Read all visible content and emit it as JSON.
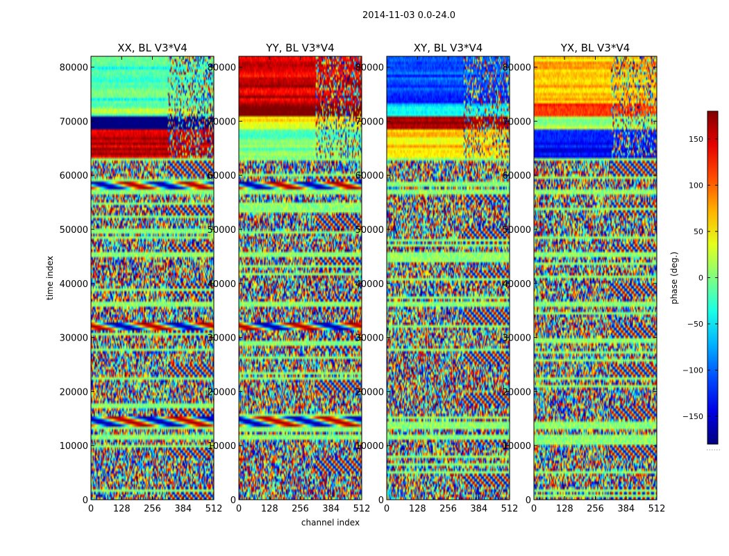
{
  "figure": {
    "suptitle": "2014-11-03 0.0-24.0"
  },
  "chart_data": {
    "type": "heatmap",
    "title": "2014-11-03 0.0-24.0",
    "xlabel": "channel index",
    "ylabel": "time index",
    "xlim": [
      0,
      512
    ],
    "ylim": [
      0,
      82000
    ],
    "xticks": [
      0,
      128,
      256,
      384,
      512
    ],
    "yticks": [
      0,
      10000,
      20000,
      30000,
      40000,
      50000,
      60000,
      70000,
      80000
    ],
    "xtick_labels": [
      "0",
      "128",
      "256",
      "384",
      "512"
    ],
    "ytick_labels": [
      "0",
      "10000",
      "20000",
      "30000",
      "40000",
      "50000",
      "60000",
      "70000",
      "80000"
    ],
    "colormap": "jet",
    "colorbar": {
      "label": "phase (deg.)",
      "range": [
        -180,
        180
      ],
      "ticks": [
        150,
        100,
        50,
        0,
        -50,
        -100,
        -150
      ],
      "tick_labels": [
        "150",
        "100",
        "50",
        "0",
        "−50",
        "−100",
        "−150"
      ],
      "footer": "......"
    },
    "panels": [
      {
        "title": "XX, BL V3*V4",
        "polarization": "XX",
        "baseline": "V3*V4",
        "seed": 11
      },
      {
        "title": "YY, BL V3*V4",
        "polarization": "YY",
        "baseline": "V3*V4",
        "seed": 23
      },
      {
        "title": "XY, BL V3*V4",
        "polarization": "XY",
        "baseline": "V3*V4",
        "seed": 37
      },
      {
        "title": "YX, BL V3*V4",
        "polarization": "YX",
        "baseline": "V3*V4",
        "seed": 51
      }
    ],
    "features": {
      "noise_region_time": [
        0,
        63000
      ],
      "coherent_region_time": [
        63000,
        82000
      ],
      "bright_bands_time": [
        14500,
        32000,
        58000
      ],
      "quiet_bands_time": [
        11500,
        13500,
        36000,
        45500,
        57000,
        63200,
        73500
      ],
      "fringe_region_channels": [
        320,
        512
      ],
      "mean_phase_deg": [
        [
          [
            63000,
            68500,
            150
          ],
          [
            68500,
            71000,
            -170
          ],
          [
            71000,
            73500,
            0
          ],
          [
            73500,
            82000,
            -20
          ]
        ],
        [
          [
            63000,
            68500,
            -10
          ],
          [
            68500,
            71000,
            50
          ],
          [
            71000,
            73500,
            175
          ],
          [
            73500,
            82000,
            150
          ]
        ],
        [
          [
            63000,
            68500,
            60
          ],
          [
            68500,
            71000,
            170
          ],
          [
            71000,
            73500,
            -60
          ],
          [
            73500,
            82000,
            -110
          ]
        ],
        [
          [
            63000,
            68500,
            -130
          ],
          [
            68500,
            71000,
            20
          ],
          [
            71000,
            73500,
            110
          ],
          [
            73500,
            82000,
            70
          ]
        ]
      ]
    }
  }
}
